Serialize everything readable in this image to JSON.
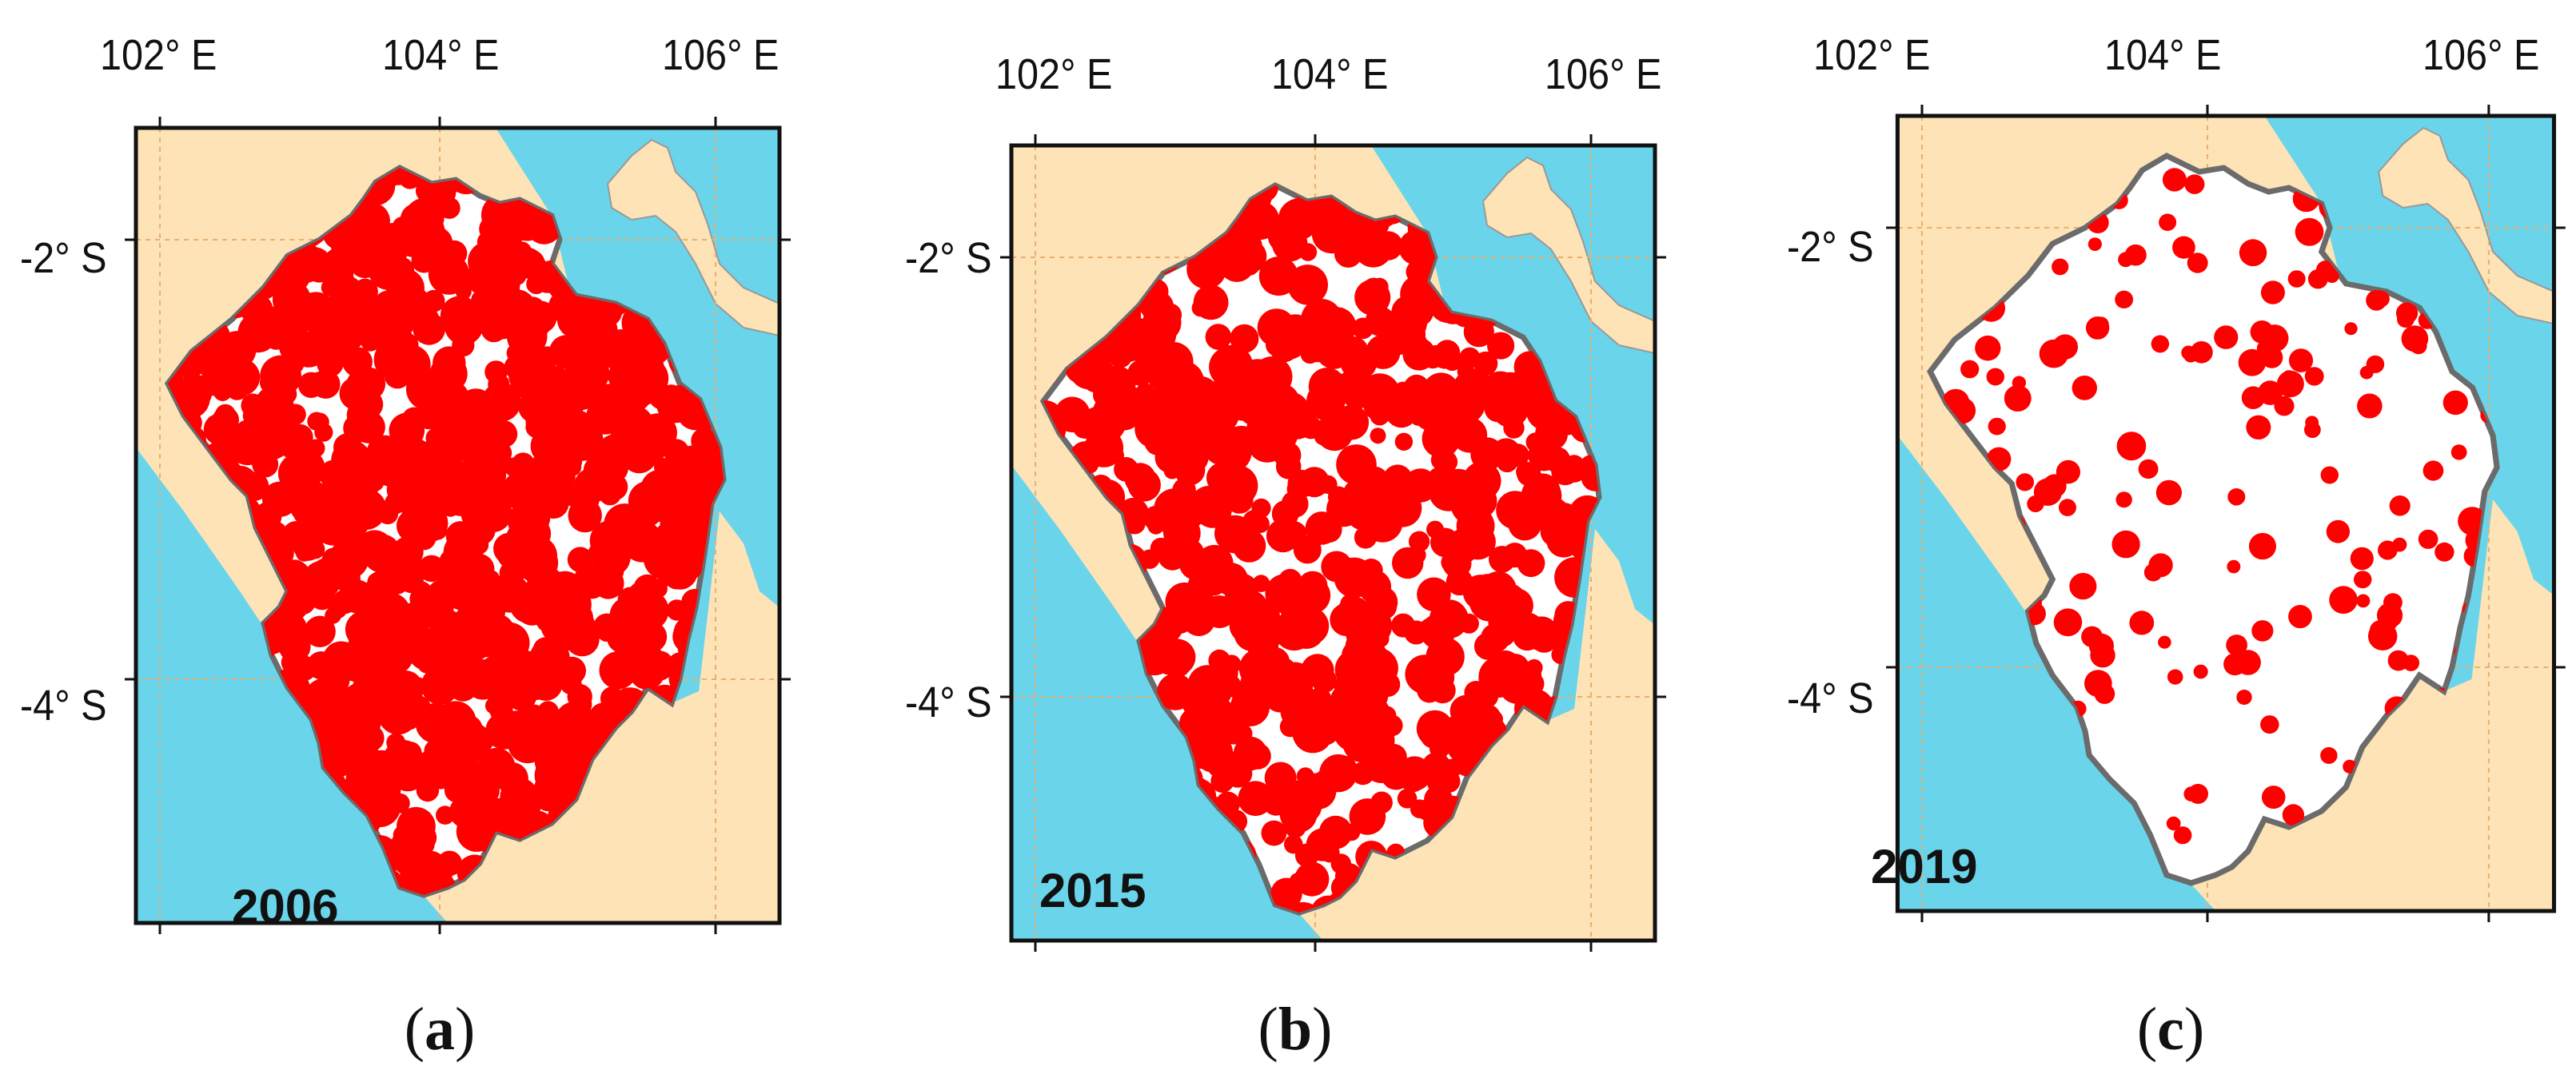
{
  "panels": [
    {
      "id": "a",
      "year": "2006",
      "caption_letter": "a",
      "lon_ticks": [
        "102° E",
        "104° E",
        "106° E"
      ],
      "lat_ticks": [
        "-2° S",
        "-4° S"
      ],
      "hotspot_density": 0.95
    },
    {
      "id": "b",
      "year": "2015",
      "caption_letter": "b",
      "lon_ticks": [
        "102° E",
        "104° E",
        "106° E"
      ],
      "lat_ticks": [
        "-2° S",
        "-4° S"
      ],
      "hotspot_density": 0.8
    },
    {
      "id": "c",
      "year": "2019",
      "caption_letter": "c",
      "lon_ticks": [
        "102° E",
        "104° E",
        "106° E"
      ],
      "lat_ticks": [
        "-2° S",
        "-4° S"
      ],
      "hotspot_density": 0.35
    }
  ],
  "colors": {
    "sea": "#6ad4ea",
    "land": "#fde3b6",
    "province": "#ffffff",
    "province_outline": "#6b6b6b",
    "hotspot": "#ff0000",
    "grid": "#e8b070",
    "frame": "#111111"
  }
}
